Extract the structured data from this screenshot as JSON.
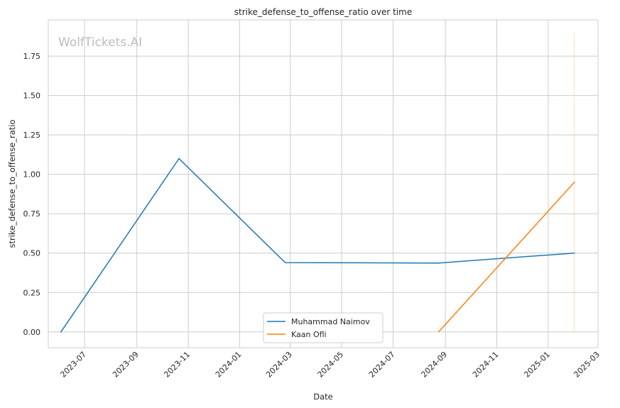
{
  "chart_data": {
    "type": "line",
    "title": "strike_defense_to_offense_ratio over time",
    "xlabel": "Date",
    "ylabel": "strike_defense_to_offense_ratio",
    "watermark": "WolfTickets.AI",
    "xlim": [
      "2023-05-19",
      "2025-03-01"
    ],
    "ylim": [
      -0.1,
      1.98
    ],
    "x_ticks": [
      "2023-07",
      "2023-09",
      "2023-11",
      "2024-01",
      "2024-03",
      "2024-05",
      "2024-07",
      "2024-09",
      "2024-11",
      "2025-01",
      "2025-03"
    ],
    "y_ticks": [
      "0.00",
      "0.25",
      "0.50",
      "0.75",
      "1.00",
      "1.25",
      "1.50",
      "1.75"
    ],
    "grid": true,
    "legend_position": "bottom-center",
    "series": [
      {
        "name": "Muhammad Naimov",
        "color": "#1f77b4",
        "points": [
          {
            "x": "2023-06-03",
            "y": 0.0
          },
          {
            "x": "2023-10-21",
            "y": 1.1
          },
          {
            "x": "2024-02-24",
            "y": 0.44
          },
          {
            "x": "2024-08-24",
            "y": 0.437
          },
          {
            "x": "2025-02-01",
            "y": 0.5
          }
        ]
      },
      {
        "name": "Kaan Ofli",
        "color": "#ff7f0e",
        "points": [
          {
            "x": "2024-08-24",
            "y": 0.0
          },
          {
            "x": "2025-02-01",
            "y": 0.95
          }
        ]
      }
    ],
    "vertical_marker": {
      "x": "2025-02-01",
      "y_range": [
        0.0,
        1.9
      ],
      "color": "#ff7f0e"
    }
  }
}
